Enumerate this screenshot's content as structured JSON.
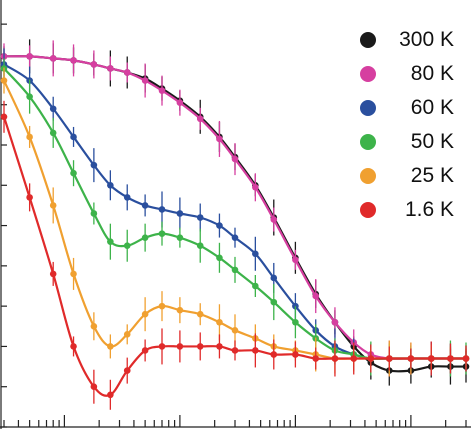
{
  "chart_data": {
    "type": "line",
    "title": "",
    "xlabel": "",
    "ylabel": "",
    "x_scale": "log",
    "xlim": [
      0.003,
      30
    ],
    "ylim": [
      0,
      1.05
    ],
    "grid": false,
    "legend_position": "top-right",
    "series": [
      {
        "name": "300 K",
        "color": "#1a1a1a",
        "x": [
          0.003,
          0.005,
          0.008,
          0.012,
          0.018,
          0.025,
          0.035,
          0.05,
          0.07,
          0.1,
          0.15,
          0.22,
          0.3,
          0.45,
          0.65,
          1.0,
          1.5,
          2.2,
          3.2,
          4.5,
          6.5,
          10,
          15,
          22,
          30
        ],
        "y": [
          0.92,
          0.92,
          0.915,
          0.91,
          0.9,
          0.89,
          0.88,
          0.865,
          0.84,
          0.81,
          0.77,
          0.72,
          0.67,
          0.6,
          0.52,
          0.42,
          0.33,
          0.26,
          0.2,
          0.16,
          0.14,
          0.14,
          0.15,
          0.15,
          0.15
        ]
      },
      {
        "name": "80 K",
        "color": "#d63fa0",
        "x": [
          0.003,
          0.005,
          0.008,
          0.012,
          0.018,
          0.025,
          0.035,
          0.05,
          0.07,
          0.1,
          0.15,
          0.22,
          0.3,
          0.45,
          0.65,
          1.0,
          1.5,
          2.2,
          3.2,
          4.5,
          6.5,
          10,
          15,
          22,
          30
        ],
        "y": [
          0.92,
          0.92,
          0.915,
          0.91,
          0.9,
          0.89,
          0.88,
          0.86,
          0.835,
          0.805,
          0.765,
          0.715,
          0.665,
          0.595,
          0.515,
          0.415,
          0.325,
          0.26,
          0.21,
          0.18,
          0.17,
          0.17,
          0.17,
          0.17,
          0.17
        ]
      },
      {
        "name": "60 K",
        "color": "#2a4f9e",
        "x": [
          0.003,
          0.005,
          0.008,
          0.012,
          0.018,
          0.025,
          0.035,
          0.05,
          0.07,
          0.1,
          0.15,
          0.22,
          0.3,
          0.45,
          0.65,
          1.0,
          1.5,
          2.2,
          3.2,
          4.5,
          6.5,
          10,
          15,
          22,
          30
        ],
        "y": [
          0.9,
          0.86,
          0.79,
          0.72,
          0.65,
          0.6,
          0.57,
          0.55,
          0.54,
          0.53,
          0.52,
          0.5,
          0.47,
          0.43,
          0.37,
          0.3,
          0.24,
          0.2,
          0.18,
          0.17,
          0.17,
          0.17,
          0.17,
          0.17,
          0.17
        ]
      },
      {
        "name": "50 K",
        "color": "#3db34a",
        "x": [
          0.003,
          0.005,
          0.008,
          0.012,
          0.018,
          0.025,
          0.035,
          0.05,
          0.07,
          0.1,
          0.15,
          0.22,
          0.3,
          0.45,
          0.65,
          1.0,
          1.5,
          2.2,
          3.2,
          4.5,
          6.5,
          10,
          15,
          22,
          30
        ],
        "y": [
          0.89,
          0.82,
          0.73,
          0.63,
          0.53,
          0.46,
          0.45,
          0.47,
          0.48,
          0.47,
          0.45,
          0.42,
          0.39,
          0.35,
          0.31,
          0.26,
          0.22,
          0.19,
          0.18,
          0.17,
          0.17,
          0.17,
          0.17,
          0.17,
          0.17
        ]
      },
      {
        "name": "25 K",
        "color": "#f0a030",
        "x": [
          0.003,
          0.005,
          0.008,
          0.012,
          0.018,
          0.025,
          0.035,
          0.05,
          0.07,
          0.1,
          0.15,
          0.22,
          0.3,
          0.45,
          0.65,
          1.0,
          1.5,
          2.2,
          3.2,
          4.5,
          6.5,
          10,
          15,
          22,
          30
        ],
        "y": [
          0.86,
          0.72,
          0.55,
          0.38,
          0.25,
          0.2,
          0.23,
          0.28,
          0.3,
          0.29,
          0.28,
          0.26,
          0.24,
          0.22,
          0.2,
          0.19,
          0.18,
          0.17,
          0.17,
          0.17,
          0.17,
          0.17,
          0.17,
          0.17,
          0.17
        ]
      },
      {
        "name": "1.6 K",
        "color": "#e02a2a",
        "x": [
          0.003,
          0.005,
          0.008,
          0.012,
          0.018,
          0.025,
          0.035,
          0.05,
          0.07,
          0.1,
          0.15,
          0.22,
          0.3,
          0.45,
          0.65,
          1.0,
          1.5,
          2.2,
          3.2,
          4.5,
          6.5,
          10,
          15,
          22,
          30
        ],
        "y": [
          0.77,
          0.57,
          0.38,
          0.2,
          0.1,
          0.08,
          0.14,
          0.19,
          0.2,
          0.2,
          0.2,
          0.2,
          0.19,
          0.19,
          0.18,
          0.18,
          0.17,
          0.17,
          0.17,
          0.17,
          0.17,
          0.17,
          0.17,
          0.17,
          0.17
        ]
      }
    ]
  }
}
